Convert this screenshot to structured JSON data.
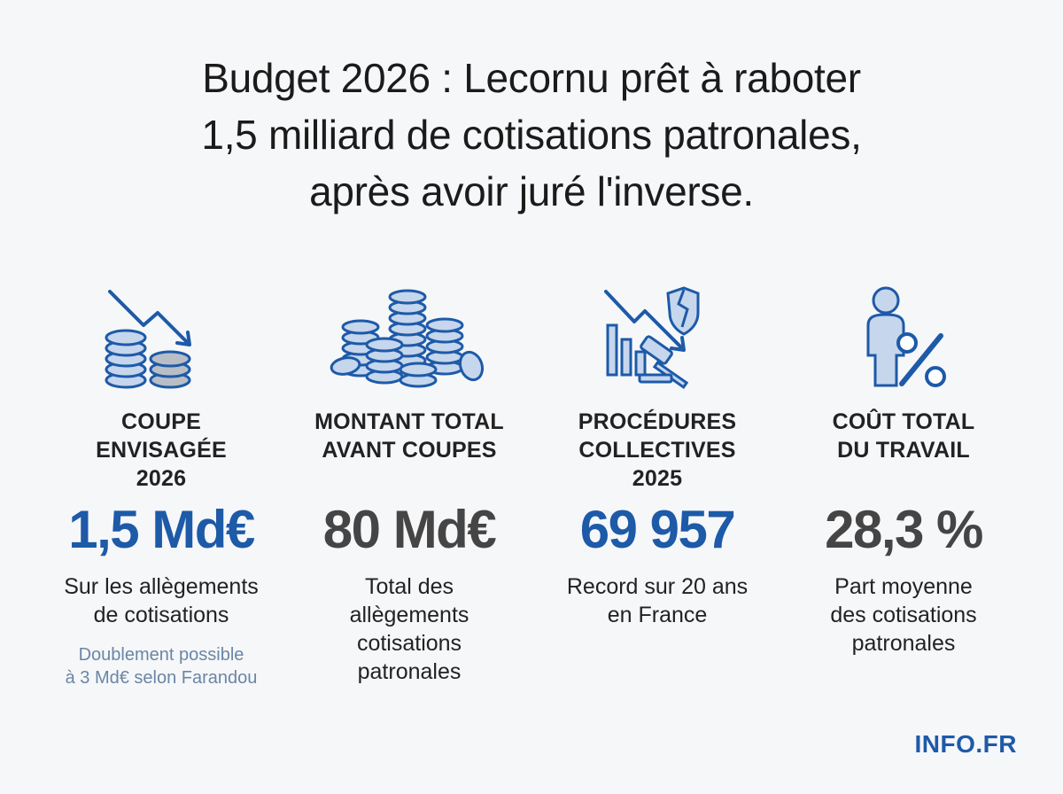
{
  "title": {
    "line1": "Budget 2026 : Lecornu prêt à raboter",
    "line2": "1,5 milliard de cotisations patronales,",
    "line3": "après avoir juré l'inverse."
  },
  "columns": [
    {
      "icon": "coins-down-icon",
      "label_lines": [
        "COUPE",
        "ENVISAGÉE",
        "2026"
      ],
      "value": "1,5 Md€",
      "value_color": "#1d5aa8",
      "desc_lines": [
        "Sur les allègements",
        "de cotisations"
      ],
      "note_lines": [
        "Doublement possible",
        "à 3 Md€ selon Farandou"
      ]
    },
    {
      "icon": "coin-stacks-icon",
      "label_lines": [
        "MONTANT TOTAL",
        "AVANT COUPES"
      ],
      "value": "80 Md€",
      "value_color": "#454545",
      "desc_lines": [
        "Total des",
        "allègements",
        "cotisations",
        "patronales"
      ]
    },
    {
      "icon": "bankruptcy-gavel-icon",
      "label_lines": [
        "PROCÉDURES",
        "COLLECTIVES",
        "2025"
      ],
      "value": "69 957",
      "value_color": "#1d5aa8",
      "desc_lines": [
        "Record sur 20 ans",
        "en France"
      ]
    },
    {
      "icon": "person-percent-icon",
      "label_lines": [
        "COÛT TOTAL",
        "DU TRAVAIL"
      ],
      "value": "28,3 %",
      "value_color": "#454545",
      "desc_lines": [
        "Part moyenne",
        "des cotisations",
        "patronales"
      ]
    }
  ],
  "brand": "INFO.FR",
  "colors": {
    "accent": "#1d5aa8",
    "accent_light": "#c6d6ec",
    "coin_gray": "#b9bec6"
  }
}
